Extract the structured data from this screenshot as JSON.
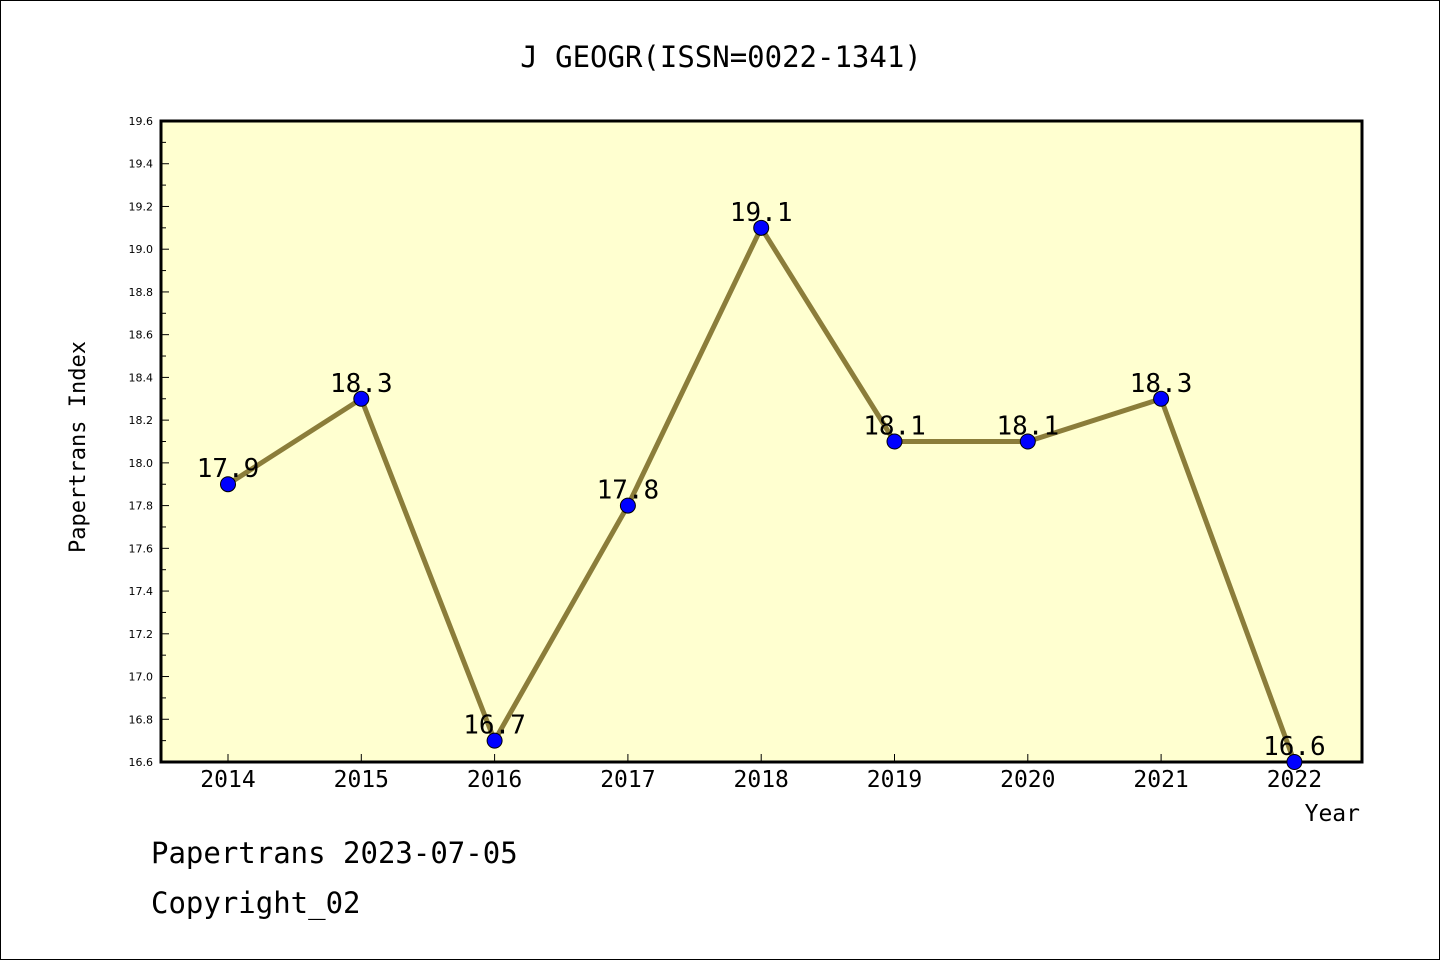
{
  "chart_data": {
    "type": "line",
    "title": "J GEOGR(ISSN=0022-1341)",
    "xlabel": "Year",
    "ylabel": "Papertrans Index",
    "categories": [
      "2014",
      "2015",
      "2016",
      "2017",
      "2018",
      "2019",
      "2020",
      "2021",
      "2022"
    ],
    "series": [
      {
        "values": [
          17.9,
          18.3,
          16.7,
          17.8,
          19.1,
          18.1,
          18.1,
          18.3,
          16.6
        ],
        "labels": [
          "17.9",
          "18.3",
          "16.7",
          "17.8",
          "19.1",
          "18.1",
          "18.1",
          "18.3",
          "16.6"
        ],
        "line_color": "#8B7D3A",
        "marker_color": "#0000FF"
      }
    ],
    "ylim": [
      16.6,
      19.6
    ],
    "yticks": [
      "16.6",
      "16.8",
      "17.0",
      "17.2",
      "17.4",
      "17.6",
      "17.8",
      "18.0",
      "18.2",
      "18.4",
      "18.6",
      "18.8",
      "19.0",
      "19.2",
      "19.4",
      "19.6"
    ],
    "plot_background": "#FFFFD0",
    "grid": false,
    "legend": "none"
  },
  "footer": {
    "line1": "Papertrans 2023-07-05",
    "line2": "Copyright_02"
  }
}
